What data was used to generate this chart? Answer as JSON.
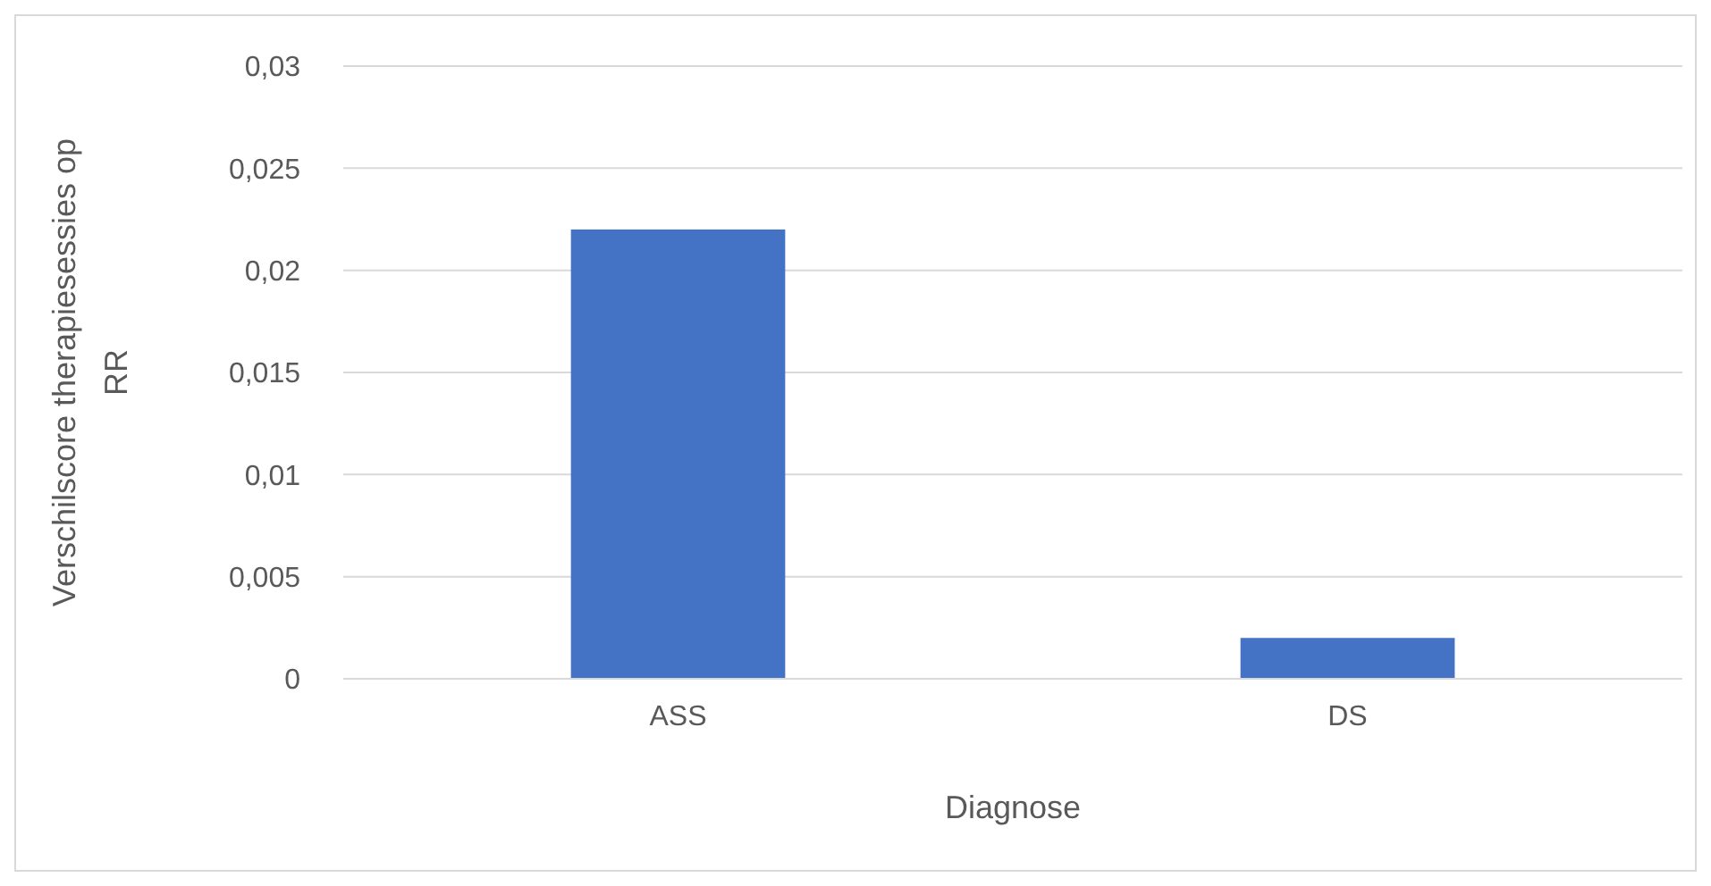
{
  "chart_data": {
    "type": "bar",
    "xlabel": "Diagnose",
    "ylabel": "Verschilscore therapiesessies op RR",
    "categories": [
      "ASS",
      "DS"
    ],
    "values": [
      0.022,
      0.002
    ],
    "color": "#4472c4",
    "ylim": [
      0,
      0.03
    ],
    "yticks": [
      0,
      {
        "value": 0.005,
        "label": "0,005"
      },
      {
        "value": 0.01,
        "label": "0,01"
      },
      {
        "value": 0.015,
        "label": "0,015"
      },
      {
        "value": 0.02,
        "label": "0,02"
      },
      {
        "value": 0.025,
        "label": "0,025"
      },
      {
        "value": 0.03,
        "label": "0,03"
      }
    ],
    "grid": "y"
  }
}
